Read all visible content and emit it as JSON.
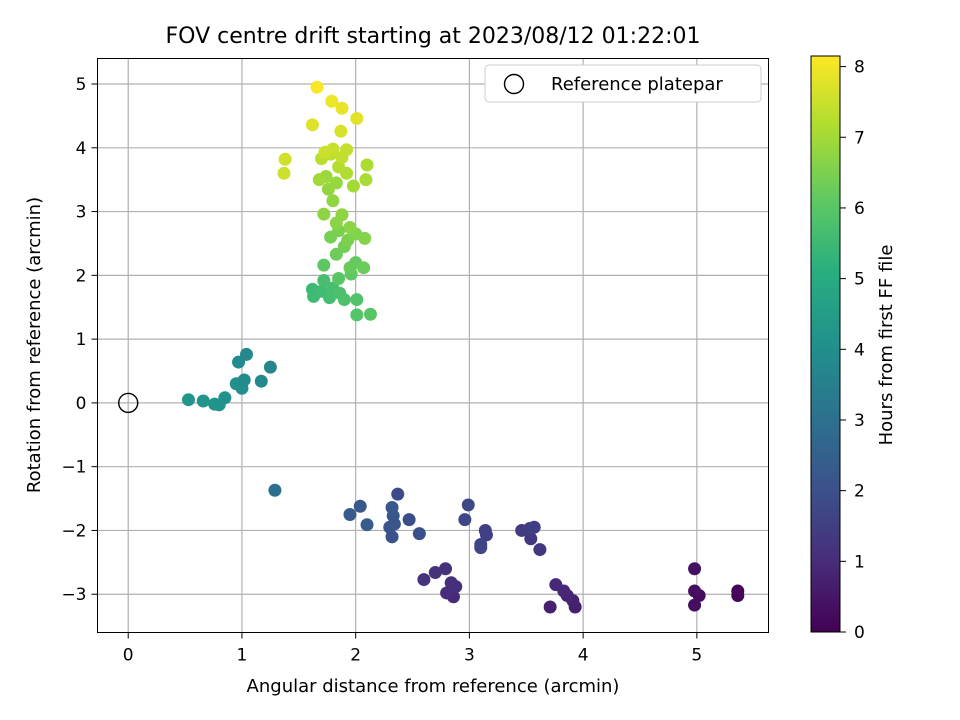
{
  "chart_data": {
    "type": "scatter",
    "title": "FOV centre drift starting at 2023/08/12 01:22:01",
    "xlabel": "Angular distance from reference (arcmin)",
    "ylabel": "Rotation from reference (arcmin)",
    "xlim": [
      -0.27,
      5.63
    ],
    "ylim": [
      -3.6,
      5.4
    ],
    "xticks": [
      "0",
      "1",
      "2",
      "3",
      "4",
      "5"
    ],
    "yticks": [
      "−3",
      "−2",
      "−1",
      "0",
      "1",
      "2",
      "3",
      "4",
      "5"
    ],
    "grid": true,
    "legend": {
      "placement": "top-right",
      "entries": [
        "Reference platepar"
      ]
    },
    "reference_point": {
      "x": 0,
      "y": 0
    },
    "colorbar": {
      "label": "Hours from first FF file",
      "range": [
        0,
        8.15
      ],
      "ticks": [
        "0",
        "1",
        "2",
        "3",
        "4",
        "5",
        "6",
        "7",
        "8"
      ],
      "colormap": "viridis"
    },
    "points": [
      {
        "x": 5.36,
        "y": -2.95,
        "h": 0.1
      },
      {
        "x": 5.36,
        "y": -3.02,
        "h": 0.15
      },
      {
        "x": 5.02,
        "y": -3.02,
        "h": 0.25
      },
      {
        "x": 4.98,
        "y": -3.17,
        "h": 0.3
      },
      {
        "x": 4.98,
        "y": -2.95,
        "h": 0.35
      },
      {
        "x": 4.98,
        "y": -2.6,
        "h": 0.4
      },
      {
        "x": 3.93,
        "y": -3.2,
        "h": 0.7
      },
      {
        "x": 3.71,
        "y": -3.2,
        "h": 0.75
      },
      {
        "x": 3.91,
        "y": -3.1,
        "h": 0.8
      },
      {
        "x": 3.86,
        "y": -3.02,
        "h": 0.85
      },
      {
        "x": 3.83,
        "y": -2.95,
        "h": 0.9
      },
      {
        "x": 3.76,
        "y": -2.85,
        "h": 0.95
      },
      {
        "x": 2.86,
        "y": -3.04,
        "h": 1.0
      },
      {
        "x": 2.8,
        "y": -2.98,
        "h": 1.05
      },
      {
        "x": 2.88,
        "y": -2.88,
        "h": 1.1
      },
      {
        "x": 2.84,
        "y": -2.82,
        "h": 1.12
      },
      {
        "x": 2.79,
        "y": -2.6,
        "h": 1.15
      },
      {
        "x": 2.7,
        "y": -2.66,
        "h": 1.18
      },
      {
        "x": 2.6,
        "y": -2.77,
        "h": 1.2
      },
      {
        "x": 3.62,
        "y": -2.3,
        "h": 1.3
      },
      {
        "x": 3.54,
        "y": -2.13,
        "h": 1.35
      },
      {
        "x": 3.46,
        "y": -2.0,
        "h": 1.4
      },
      {
        "x": 3.53,
        "y": -1.97,
        "h": 1.45
      },
      {
        "x": 3.57,
        "y": -1.95,
        "h": 1.5
      },
      {
        "x": 3.14,
        "y": -2.0,
        "h": 1.55
      },
      {
        "x": 3.15,
        "y": -2.07,
        "h": 1.6
      },
      {
        "x": 3.1,
        "y": -2.22,
        "h": 1.65
      },
      {
        "x": 3.1,
        "y": -2.27,
        "h": 1.7
      },
      {
        "x": 2.96,
        "y": -1.83,
        "h": 1.75
      },
      {
        "x": 2.99,
        "y": -1.6,
        "h": 1.8
      },
      {
        "x": 2.37,
        "y": -1.43,
        "h": 1.9
      },
      {
        "x": 2.47,
        "y": -1.83,
        "h": 1.95
      },
      {
        "x": 2.56,
        "y": -2.05,
        "h": 2.0
      },
      {
        "x": 2.32,
        "y": -2.1,
        "h": 2.05
      },
      {
        "x": 2.3,
        "y": -1.95,
        "h": 2.1
      },
      {
        "x": 2.34,
        "y": -1.9,
        "h": 2.15
      },
      {
        "x": 2.33,
        "y": -1.77,
        "h": 2.2
      },
      {
        "x": 2.32,
        "y": -1.64,
        "h": 2.25
      },
      {
        "x": 2.04,
        "y": -1.62,
        "h": 2.3
      },
      {
        "x": 1.95,
        "y": -1.75,
        "h": 2.35
      },
      {
        "x": 2.1,
        "y": -1.91,
        "h": 2.4
      },
      {
        "x": 1.29,
        "y": -1.37,
        "h": 3.0
      },
      {
        "x": 0.53,
        "y": 0.05,
        "h": 4.3
      },
      {
        "x": 0.66,
        "y": 0.03,
        "h": 4.25
      },
      {
        "x": 0.76,
        "y": -0.02,
        "h": 4.2
      },
      {
        "x": 0.8,
        "y": -0.03,
        "h": 4.15
      },
      {
        "x": 0.85,
        "y": 0.08,
        "h": 4.1
      },
      {
        "x": 0.95,
        "y": 0.3,
        "h": 4.05
      },
      {
        "x": 1.0,
        "y": 0.23,
        "h": 4.0
      },
      {
        "x": 1.02,
        "y": 0.36,
        "h": 3.95
      },
      {
        "x": 0.97,
        "y": 0.64,
        "h": 3.9
      },
      {
        "x": 1.04,
        "y": 0.76,
        "h": 3.85
      },
      {
        "x": 1.17,
        "y": 0.34,
        "h": 3.8
      },
      {
        "x": 1.25,
        "y": 0.56,
        "h": 3.75
      },
      {
        "x": 1.62,
        "y": 1.78,
        "h": 5.5
      },
      {
        "x": 1.63,
        "y": 1.67,
        "h": 5.55
      },
      {
        "x": 1.7,
        "y": 1.75,
        "h": 5.6
      },
      {
        "x": 1.77,
        "y": 1.65,
        "h": 5.65
      },
      {
        "x": 1.72,
        "y": 1.92,
        "h": 5.7
      },
      {
        "x": 1.8,
        "y": 1.8,
        "h": 5.75
      },
      {
        "x": 1.86,
        "y": 1.72,
        "h": 5.8
      },
      {
        "x": 1.9,
        "y": 1.62,
        "h": 5.85
      },
      {
        "x": 2.01,
        "y": 1.62,
        "h": 5.9
      },
      {
        "x": 2.01,
        "y": 1.38,
        "h": 5.95
      },
      {
        "x": 2.13,
        "y": 1.39,
        "h": 6.0
      },
      {
        "x": 1.85,
        "y": 1.95,
        "h": 6.05
      },
      {
        "x": 1.72,
        "y": 2.16,
        "h": 6.1
      },
      {
        "x": 1.96,
        "y": 2.02,
        "h": 6.15
      },
      {
        "x": 2.0,
        "y": 2.2,
        "h": 6.2
      },
      {
        "x": 1.95,
        "y": 2.12,
        "h": 6.25
      },
      {
        "x": 2.07,
        "y": 2.12,
        "h": 6.3
      },
      {
        "x": 1.83,
        "y": 2.33,
        "h": 6.35
      },
      {
        "x": 1.9,
        "y": 2.45,
        "h": 6.4
      },
      {
        "x": 1.78,
        "y": 2.6,
        "h": 6.45
      },
      {
        "x": 1.85,
        "y": 2.7,
        "h": 6.5
      },
      {
        "x": 1.93,
        "y": 2.55,
        "h": 6.55
      },
      {
        "x": 2.0,
        "y": 2.65,
        "h": 6.6
      },
      {
        "x": 2.08,
        "y": 2.58,
        "h": 6.65
      },
      {
        "x": 1.95,
        "y": 2.75,
        "h": 6.7
      },
      {
        "x": 1.83,
        "y": 2.82,
        "h": 6.72
      },
      {
        "x": 1.72,
        "y": 2.96,
        "h": 6.75
      },
      {
        "x": 1.88,
        "y": 2.95,
        "h": 6.78
      },
      {
        "x": 1.8,
        "y": 3.17,
        "h": 6.8
      },
      {
        "x": 1.76,
        "y": 3.35,
        "h": 6.85
      },
      {
        "x": 1.83,
        "y": 3.45,
        "h": 6.9
      },
      {
        "x": 1.74,
        "y": 3.55,
        "h": 6.95
      },
      {
        "x": 1.68,
        "y": 3.5,
        "h": 7.0
      },
      {
        "x": 1.98,
        "y": 3.4,
        "h": 7.05
      },
      {
        "x": 2.09,
        "y": 3.5,
        "h": 7.1
      },
      {
        "x": 2.1,
        "y": 3.73,
        "h": 7.15
      },
      {
        "x": 1.92,
        "y": 3.6,
        "h": 7.2
      },
      {
        "x": 1.85,
        "y": 3.7,
        "h": 7.25
      },
      {
        "x": 1.7,
        "y": 3.83,
        "h": 7.3
      },
      {
        "x": 1.78,
        "y": 3.9,
        "h": 7.35
      },
      {
        "x": 1.88,
        "y": 3.85,
        "h": 7.4
      },
      {
        "x": 1.92,
        "y": 3.97,
        "h": 7.45
      },
      {
        "x": 1.8,
        "y": 3.98,
        "h": 7.5
      },
      {
        "x": 1.73,
        "y": 3.93,
        "h": 7.52
      },
      {
        "x": 1.37,
        "y": 3.6,
        "h": 7.55
      },
      {
        "x": 1.38,
        "y": 3.82,
        "h": 7.6
      },
      {
        "x": 1.87,
        "y": 4.26,
        "h": 7.7
      },
      {
        "x": 1.62,
        "y": 4.36,
        "h": 7.75
      },
      {
        "x": 2.01,
        "y": 4.46,
        "h": 7.8
      },
      {
        "x": 1.88,
        "y": 4.62,
        "h": 7.9
      },
      {
        "x": 1.79,
        "y": 4.73,
        "h": 7.95
      },
      {
        "x": 1.66,
        "y": 4.95,
        "h": 8.1
      }
    ]
  }
}
